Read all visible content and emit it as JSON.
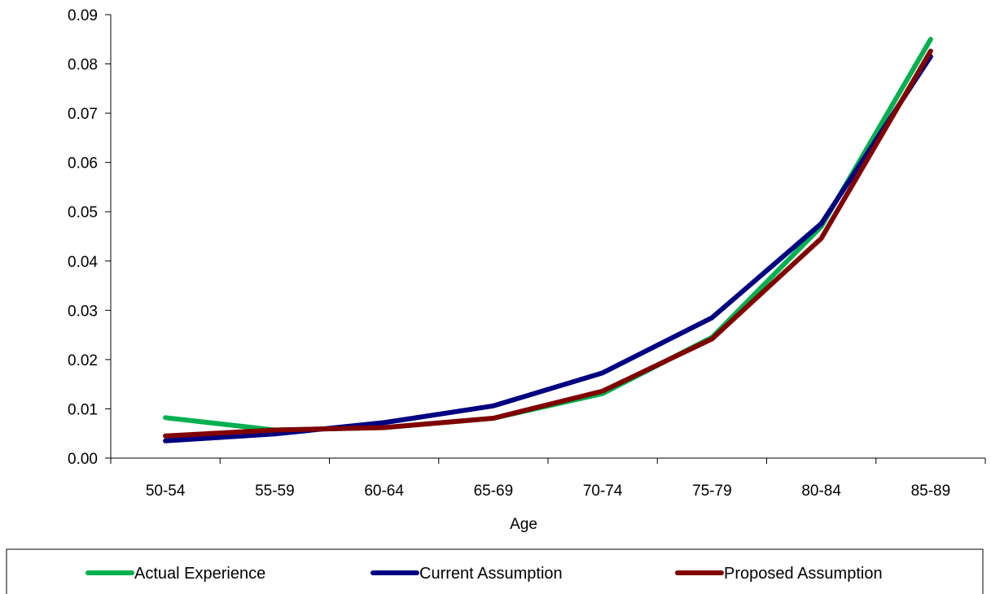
{
  "chart_data": {
    "type": "line",
    "title": "",
    "xlabel": "Age",
    "ylabel": "",
    "categories": [
      "50-54",
      "55-59",
      "60-64",
      "65-69",
      "70-74",
      "75-79",
      "80-84",
      "85-89"
    ],
    "yticks": [
      "0.00",
      "0.01",
      "0.02",
      "0.03",
      "0.04",
      "0.05",
      "0.06",
      "0.07",
      "0.08",
      "0.09"
    ],
    "ylim": [
      0,
      0.09
    ],
    "grid": false,
    "legend": "bottom",
    "series": [
      {
        "name": "Actual Experience",
        "color": "#00b050",
        "values": [
          0.0082,
          0.0057,
          0.0062,
          0.0081,
          0.0131,
          0.0245,
          0.047,
          0.085
        ]
      },
      {
        "name": "Current Assumption",
        "color": "#000080",
        "values": [
          0.0035,
          0.0049,
          0.0072,
          0.0106,
          0.0173,
          0.0285,
          0.0476,
          0.0815
        ]
      },
      {
        "name": "Proposed Assumption",
        "color": "#800000",
        "values": [
          0.0045,
          0.0057,
          0.0062,
          0.0081,
          0.0136,
          0.0242,
          0.0446,
          0.0826
        ]
      }
    ]
  }
}
